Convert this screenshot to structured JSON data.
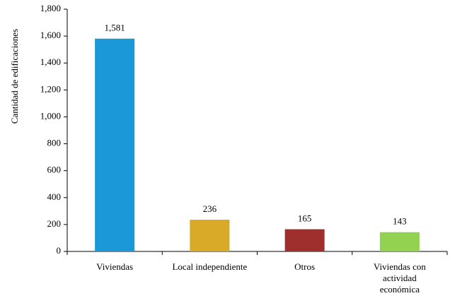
{
  "chart_data": {
    "type": "bar",
    "y_label": "Cantidad de edificaciones",
    "categories": [
      "Viviendas",
      "Local independiente",
      "Otros",
      "Viviendas con actividad económica"
    ],
    "values": [
      1581,
      236,
      165,
      143
    ],
    "value_labels": [
      "1,581",
      "236",
      "165",
      "143"
    ],
    "colors": [
      "#1b98d8",
      "#d9a928",
      "#9e2f2d",
      "#93d150"
    ],
    "ylim": [
      0,
      1800
    ],
    "yticks": [
      0,
      200,
      400,
      600,
      800,
      {
        "value": 1000,
        "label": "1,000"
      },
      {
        "value": 1200,
        "label": "1,200"
      },
      {
        "value": 1400,
        "label": "1,400"
      },
      {
        "value": 1600,
        "label": "1,600"
      },
      {
        "value": 1800,
        "label": "1,800"
      }
    ],
    "grid": false
  }
}
